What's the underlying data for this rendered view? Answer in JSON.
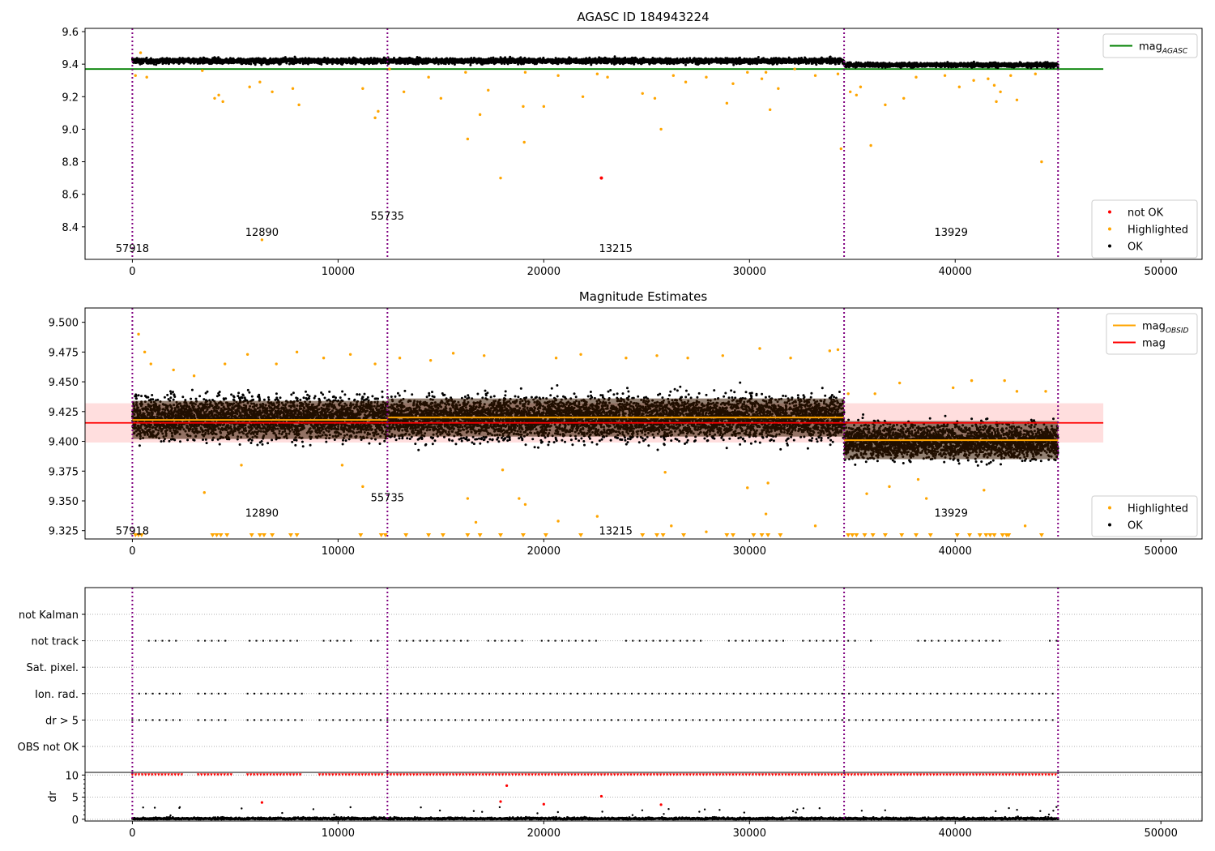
{
  "chart_data": [
    {
      "type": "scatter",
      "title": "AGASC ID 184943224",
      "xlim": [
        -2300,
        52000
      ],
      "ylim": [
        8.2,
        9.62
      ],
      "xticks": [
        0,
        10000,
        20000,
        30000,
        40000,
        50000
      ],
      "yticks": [
        8.4,
        8.6,
        8.8,
        9.0,
        9.2,
        9.4,
        9.6
      ],
      "obsid_boundaries": [
        0,
        12400,
        34600,
        45000
      ],
      "obsid_labels": [
        {
          "text": "57918",
          "x": 0,
          "y": 8.27
        },
        {
          "text": "12890",
          "x": 6300,
          "y": 8.37
        },
        {
          "text": "55735",
          "x": 12400,
          "y": 8.47
        },
        {
          "text": "13215",
          "x": 23500,
          "y": 8.27
        },
        {
          "text": "13929",
          "x": 39800,
          "y": 8.37
        }
      ],
      "reference_line": {
        "name": "mag_AGASC",
        "y": 9.37,
        "x_range": [
          -2300,
          47200
        ],
        "color": "#008000"
      },
      "ok_bands": [
        {
          "x_range": [
            0,
            34600
          ],
          "center": 9.42,
          "spread": 0.025
        },
        {
          "x_range": [
            34600,
            45000
          ],
          "center": 9.395,
          "spread": 0.02
        }
      ],
      "highlighted": [
        [
          150,
          9.33
        ],
        [
          400,
          9.47
        ],
        [
          700,
          9.32
        ],
        [
          3400,
          9.36
        ],
        [
          4000,
          9.19
        ],
        [
          4200,
          9.21
        ],
        [
          4400,
          9.17
        ],
        [
          5700,
          9.26
        ],
        [
          6200,
          9.29
        ],
        [
          6300,
          8.32
        ],
        [
          6800,
          9.23
        ],
        [
          7800,
          9.25
        ],
        [
          8100,
          9.15
        ],
        [
          11200,
          9.25
        ],
        [
          11800,
          9.07
        ],
        [
          11950,
          9.11
        ],
        [
          12500,
          9.37
        ],
        [
          13200,
          9.23
        ],
        [
          14400,
          9.32
        ],
        [
          15000,
          9.19
        ],
        [
          16200,
          9.35
        ],
        [
          16300,
          8.94
        ],
        [
          16900,
          9.09
        ],
        [
          17300,
          9.24
        ],
        [
          17900,
          8.7
        ],
        [
          19000,
          9.14
        ],
        [
          19050,
          8.92
        ],
        [
          19100,
          9.35
        ],
        [
          20000,
          9.14
        ],
        [
          20700,
          9.33
        ],
        [
          21900,
          9.2
        ],
        [
          22600,
          9.34
        ],
        [
          23100,
          9.32
        ],
        [
          24800,
          9.22
        ],
        [
          25400,
          9.19
        ],
        [
          25700,
          9.0
        ],
        [
          26300,
          9.33
        ],
        [
          26900,
          9.29
        ],
        [
          27900,
          9.32
        ],
        [
          28900,
          9.16
        ],
        [
          29200,
          9.28
        ],
        [
          29900,
          9.35
        ],
        [
          30600,
          9.31
        ],
        [
          30800,
          9.35
        ],
        [
          31000,
          9.12
        ],
        [
          31400,
          9.25
        ],
        [
          32200,
          9.37
        ],
        [
          33200,
          9.33
        ],
        [
          34300,
          9.34
        ],
        [
          34450,
          8.88
        ],
        [
          34900,
          9.23
        ],
        [
          35200,
          9.21
        ],
        [
          35400,
          9.26
        ],
        [
          35900,
          8.9
        ],
        [
          36600,
          9.15
        ],
        [
          37500,
          9.19
        ],
        [
          38100,
          9.32
        ],
        [
          39500,
          9.33
        ],
        [
          40200,
          9.26
        ],
        [
          40900,
          9.3
        ],
        [
          41600,
          9.31
        ],
        [
          41900,
          9.27
        ],
        [
          42000,
          9.17
        ],
        [
          42200,
          9.23
        ],
        [
          42700,
          9.33
        ],
        [
          43000,
          9.18
        ],
        [
          43900,
          9.34
        ],
        [
          44200,
          8.8
        ]
      ],
      "not_ok": [
        [
          22800,
          8.7
        ]
      ],
      "legends": [
        {
          "position": "top-right",
          "entries": [
            {
              "label": "mag",
              "sub": "AGASC",
              "color": "#008000",
              "kind": "line"
            }
          ]
        },
        {
          "position": "bottom-right",
          "entries": [
            {
              "label": "not OK",
              "color": "#ff0000",
              "kind": "dot"
            },
            {
              "label": "Highlighted",
              "color": "#ffa500",
              "kind": "dot"
            },
            {
              "label": "OK",
              "color": "#000000",
              "kind": "dot"
            }
          ]
        }
      ]
    },
    {
      "type": "scatter",
      "title": "Magnitude Estimates",
      "xlim": [
        -2300,
        52000
      ],
      "ylim": [
        9.318,
        9.512
      ],
      "xticks": [
        0,
        10000,
        20000,
        30000,
        40000,
        50000
      ],
      "yticks": [
        9.325,
        9.35,
        9.375,
        9.4,
        9.425,
        9.45,
        9.475,
        9.5
      ],
      "obsid_boundaries": [
        0,
        12400,
        34600,
        45000
      ],
      "obsid_labels": [
        {
          "text": "57918",
          "x": 0,
          "y": 9.325
        },
        {
          "text": "12890",
          "x": 6300,
          "y": 9.34
        },
        {
          "text": "55735",
          "x": 12400,
          "y": 9.353
        },
        {
          "text": "13215",
          "x": 23500,
          "y": 9.325
        },
        {
          "text": "13929",
          "x": 39800,
          "y": 9.34
        }
      ],
      "mag": {
        "y": 9.4155,
        "band": [
          9.399,
          9.432
        ],
        "x_range": [
          -2300,
          47200
        ],
        "color": "#ff0000"
      },
      "mag_obsid": [
        {
          "x_range": [
            0,
            12400
          ],
          "y": 9.418
        },
        {
          "x_range": [
            12400,
            34600
          ],
          "y": 9.42
        },
        {
          "x_range": [
            34600,
            45000
          ],
          "y": 9.401
        }
      ],
      "ok_bands": [
        {
          "x_range": [
            0,
            34600
          ],
          "center": 9.42,
          "spread": 0.022
        },
        {
          "x_range": [
            34600,
            45000
          ],
          "center": 9.4,
          "spread": 0.018
        }
      ],
      "highlighted": [
        [
          300,
          9.49
        ],
        [
          600,
          9.475
        ],
        [
          900,
          9.465
        ],
        [
          2000,
          9.46
        ],
        [
          3000,
          9.455
        ],
        [
          3500,
          9.357
        ],
        [
          4500,
          9.465
        ],
        [
          5300,
          9.38
        ],
        [
          5600,
          9.473
        ],
        [
          7000,
          9.465
        ],
        [
          8000,
          9.475
        ],
        [
          9300,
          9.47
        ],
        [
          10200,
          9.38
        ],
        [
          10600,
          9.473
        ],
        [
          11200,
          9.362
        ],
        [
          11800,
          9.465
        ],
        [
          13000,
          9.47
        ],
        [
          14500,
          9.468
        ],
        [
          15600,
          9.474
        ],
        [
          16300,
          9.352
        ],
        [
          16700,
          9.332
        ],
        [
          17100,
          9.472
        ],
        [
          18000,
          9.376
        ],
        [
          18800,
          9.352
        ],
        [
          19100,
          9.347
        ],
        [
          20700,
          9.333
        ],
        [
          20600,
          9.47
        ],
        [
          21800,
          9.473
        ],
        [
          22600,
          9.337
        ],
        [
          24000,
          9.47
        ],
        [
          25500,
          9.472
        ],
        [
          25900,
          9.374
        ],
        [
          26200,
          9.329
        ],
        [
          27000,
          9.47
        ],
        [
          27900,
          9.324
        ],
        [
          28700,
          9.472
        ],
        [
          29900,
          9.361
        ],
        [
          30500,
          9.478
        ],
        [
          30800,
          9.339
        ],
        [
          30900,
          9.365
        ],
        [
          32000,
          9.47
        ],
        [
          33200,
          9.329
        ],
        [
          33900,
          9.476
        ],
        [
          34300,
          9.477
        ],
        [
          34800,
          9.44
        ],
        [
          35700,
          9.356
        ],
        [
          36100,
          9.44
        ],
        [
          36800,
          9.362
        ],
        [
          37300,
          9.449
        ],
        [
          38200,
          9.368
        ],
        [
          38600,
          9.352
        ],
        [
          39900,
          9.445
        ],
        [
          40800,
          9.451
        ],
        [
          41400,
          9.359
        ],
        [
          42400,
          9.451
        ],
        [
          43000,
          9.442
        ],
        [
          44400,
          9.442
        ],
        [
          43400,
          9.329
        ]
      ],
      "below_range_markers": [
        150,
        300,
        450,
        3900,
        4100,
        4300,
        4600,
        5800,
        6200,
        6400,
        6800,
        7700,
        8000,
        11100,
        12100,
        12300,
        13300,
        14400,
        15100,
        16300,
        16900,
        17900,
        19000,
        20100,
        21800,
        24800,
        25500,
        25800,
        26800,
        28900,
        29200,
        30200,
        30600,
        30900,
        31500,
        34800,
        35000,
        35200,
        35600,
        36000,
        36600,
        37400,
        38100,
        38800,
        40100,
        40700,
        41200,
        41500,
        41700,
        41900,
        42300,
        42500,
        42600,
        44200
      ],
      "legends": [
        {
          "position": "top-right",
          "entries": [
            {
              "label": "mag",
              "sub": "OBSID",
              "color": "#ffa500",
              "kind": "line"
            },
            {
              "label": "mag",
              "sub": "",
              "color": "#ff0000",
              "kind": "line"
            }
          ]
        },
        {
          "position": "bottom-right",
          "entries": [
            {
              "label": "Highlighted",
              "color": "#ffa500",
              "kind": "dot"
            },
            {
              "label": "OK",
              "color": "#000000",
              "kind": "dot"
            }
          ]
        }
      ]
    },
    {
      "type": "scatter",
      "title": "",
      "xlim": [
        -2300,
        52000
      ],
      "xticks": [
        0,
        10000,
        20000,
        30000,
        40000,
        50000
      ],
      "obsid_boundaries": [
        0,
        12400,
        34600,
        45000
      ],
      "flag_rows": [
        "not Kalman",
        "not track",
        "Sat. pixel.",
        "Ion. rad.",
        "dr > 5",
        "OBS not OK"
      ],
      "flag_clusters": {
        "not Kalman": [],
        "not track": [
          [
            800,
            2300
          ],
          [
            3200,
            4800
          ],
          [
            5700,
            8200
          ],
          [
            9300,
            10800
          ],
          [
            11600,
            12200
          ],
          [
            13000,
            16300
          ],
          [
            17300,
            19100
          ],
          [
            19900,
            22700
          ],
          [
            24000,
            27900
          ],
          [
            29000,
            31800
          ],
          [
            32600,
            34400
          ],
          [
            34800,
            35200
          ],
          [
            35900,
            36200
          ],
          [
            38200,
            42400
          ],
          [
            44600,
            45000
          ]
        ],
        "Sat. pixel.": [],
        "Ion. rad.": [
          [
            0,
            2400
          ],
          [
            3200,
            4800
          ],
          [
            5600,
            8300
          ],
          [
            9100,
            12200
          ],
          [
            12400,
            44900
          ]
        ],
        "dr > 5": [
          [
            0,
            2400
          ],
          [
            3200,
            4800
          ],
          [
            5600,
            8300
          ],
          [
            9100,
            12200
          ],
          [
            12400,
            44900
          ]
        ],
        "OBS not OK": []
      },
      "dr": {
        "ylabel": "dr",
        "yticks": [
          0,
          5,
          10
        ],
        "ylim": [
          -0.4,
          10.6
        ],
        "clipped_at": 10,
        "clipped_ranges": [
          [
            0,
            2400
          ],
          [
            3200,
            4800
          ],
          [
            5600,
            8300
          ],
          [
            9100,
            12200
          ],
          [
            12400,
            44900
          ]
        ],
        "outliers": [
          [
            6300,
            3.8
          ],
          [
            18200,
            7.6
          ],
          [
            17900,
            4.0
          ],
          [
            20000,
            3.4
          ],
          [
            22800,
            5.2
          ],
          [
            25700,
            3.3
          ]
        ],
        "baseline": [
          0,
          0.6
        ]
      }
    }
  ]
}
